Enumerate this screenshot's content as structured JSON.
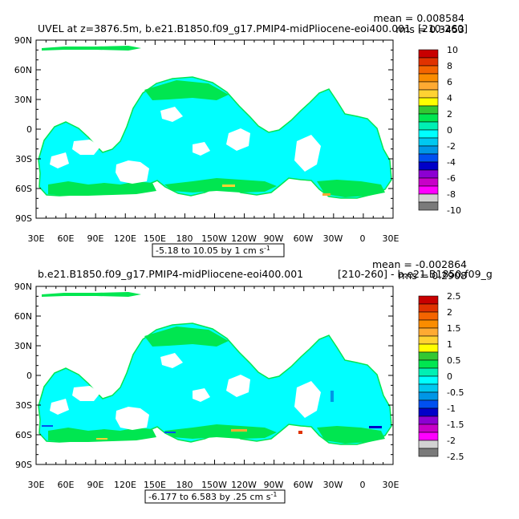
{
  "chart_data": [
    {
      "type": "heatmap",
      "title_left": "UVEL at z=3876.5m, b.e21.B1850.f09_g17.PMIP4-midPliocene-eoi400.001",
      "title_right": "[210-260]",
      "mean_label": "mean = 0.008584",
      "rms_label": "rms = 0.3453",
      "range_label": "-5.18 to 10.05 by 1 cm s",
      "range_units_sup": "-1",
      "y_ticks": [
        "90N",
        "60N",
        "30N",
        "0",
        "30S",
        "60S",
        "90S"
      ],
      "x_ticks": [
        "30E",
        "60E",
        "90E",
        "120E",
        "150E",
        "180",
        "150W",
        "120W",
        "90W",
        "60W",
        "30W",
        "0",
        "30E"
      ],
      "colorbar": {
        "labels": [
          "10",
          "8",
          "6",
          "4",
          "2",
          "0",
          "-2",
          "-4",
          "-6",
          "-8",
          "-10"
        ],
        "colors": [
          "#c80000",
          "#e03200",
          "#f46400",
          "#fa8c00",
          "#ffaa32",
          "#ffd232",
          "#ffff00",
          "#32c832",
          "#00e650",
          "#00f0b4",
          "#00ffff",
          "#00c8f0",
          "#0096e6",
          "#0050f0",
          "#0000c8",
          "#8c00d2",
          "#c800c8",
          "#ff00ff",
          "#d2d2d2",
          "#7a7a7a"
        ]
      }
    },
    {
      "type": "heatmap",
      "title_left": "b.e21.B1850.f09_g17.PMIP4-midPliocene-eoi400.001",
      "title_right": "[210-260] - b.e21.B1850.f09_g",
      "mean_label": "mean = -0.002864",
      "rms_label": "rms = 0.2908",
      "range_label": "-6.177 to 6.583 by .25 cm s",
      "range_units_sup": "-1",
      "y_ticks": [
        "90N",
        "60N",
        "30N",
        "0",
        "30S",
        "60S",
        "90S"
      ],
      "x_ticks": [
        "30E",
        "60E",
        "90E",
        "120E",
        "150E",
        "180",
        "150W",
        "120W",
        "90W",
        "60W",
        "30W",
        "0",
        "30E"
      ],
      "colorbar": {
        "labels": [
          "2.5",
          "2",
          "1.5",
          "1",
          "0.5",
          "0",
          "-0.5",
          "-1",
          "-1.5",
          "-2",
          "-2.5"
        ],
        "colors": [
          "#c80000",
          "#e03200",
          "#f46400",
          "#fa8c00",
          "#ffaa32",
          "#ffd232",
          "#ffff00",
          "#32c832",
          "#00e650",
          "#00f0b4",
          "#00ffff",
          "#00c8f0",
          "#0096e6",
          "#0050f0",
          "#0000c8",
          "#8c00d2",
          "#c800c8",
          "#ff00ff",
          "#d2d2d2",
          "#7a7a7a"
        ]
      }
    }
  ]
}
